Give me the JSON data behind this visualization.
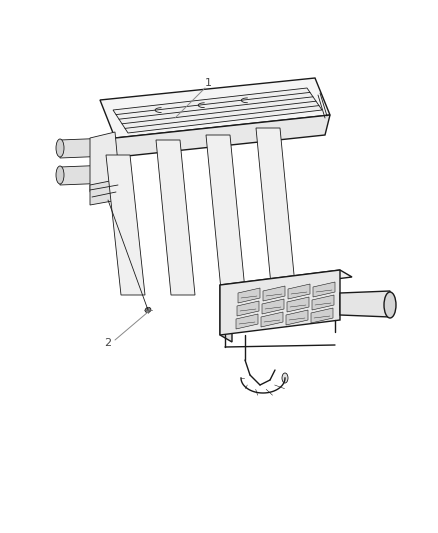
{
  "background_color": "#ffffff",
  "line_color": "#1a1a1a",
  "label_color": "#888888",
  "figsize": [
    4.38,
    5.33
  ],
  "dpi": 100,
  "lw_main": 1.0,
  "lw_thin": 0.6,
  "lw_thick": 1.2
}
